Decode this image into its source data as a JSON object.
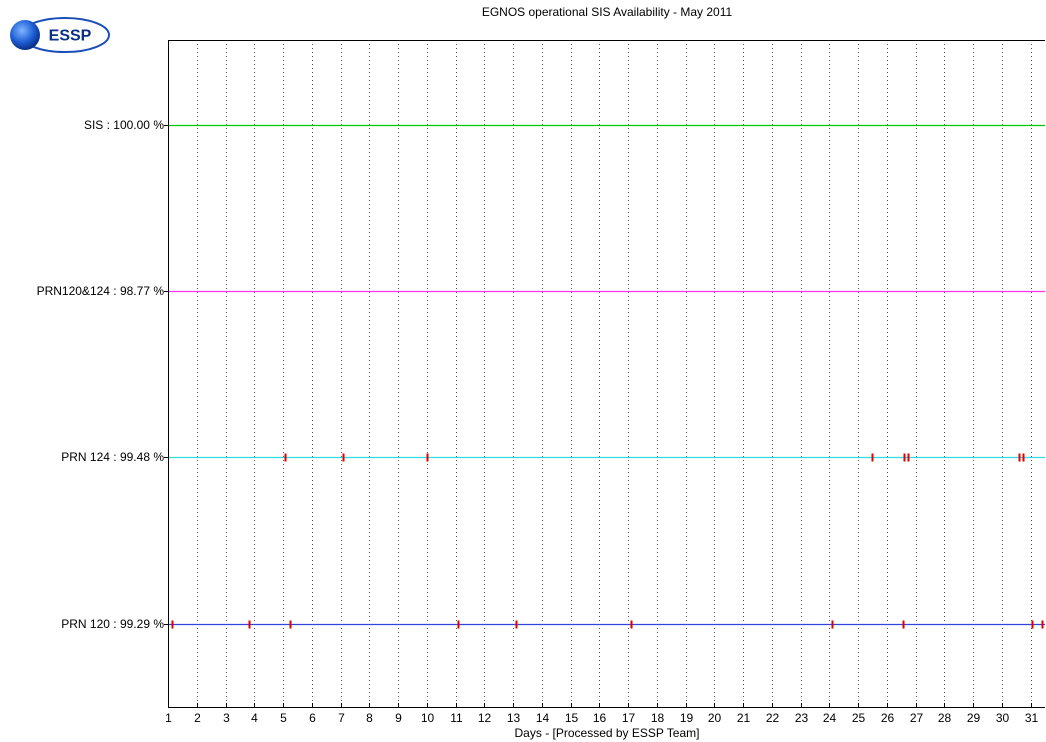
{
  "logo": {
    "text": "ESSP"
  },
  "chart_data": {
    "type": "timeline",
    "title": "EGNOS operational SIS Availability - May 2011",
    "xlabel": "Days - [Processed by ESSP Team]",
    "xlim": [
      1,
      31.5
    ],
    "xticks": [
      1,
      2,
      3,
      4,
      5,
      6,
      7,
      8,
      9,
      10,
      11,
      12,
      13,
      14,
      15,
      16,
      17,
      18,
      19,
      20,
      21,
      22,
      23,
      24,
      25,
      26,
      27,
      28,
      29,
      30,
      31
    ],
    "grid": "vertical dotted",
    "series": [
      {
        "label": "SIS : 100.00 %",
        "color": "#00cc00",
        "outages": []
      },
      {
        "label": "PRN120&124 : 98.77 %",
        "color": "#ff33ff",
        "outages": []
      },
      {
        "label": "PRN 124 : 99.48 %",
        "color": "#33dddd",
        "outages": [
          5.08,
          7.08,
          10.0,
          25.5,
          26.6,
          26.72,
          30.6,
          30.72
        ]
      },
      {
        "label": "PRN 120 : 99.29 %",
        "color": "#3344dd",
        "outages": [
          1.15,
          3.8,
          5.25,
          11.1,
          13.1,
          17.1,
          24.1,
          26.55,
          31.05,
          31.4
        ]
      }
    ]
  }
}
